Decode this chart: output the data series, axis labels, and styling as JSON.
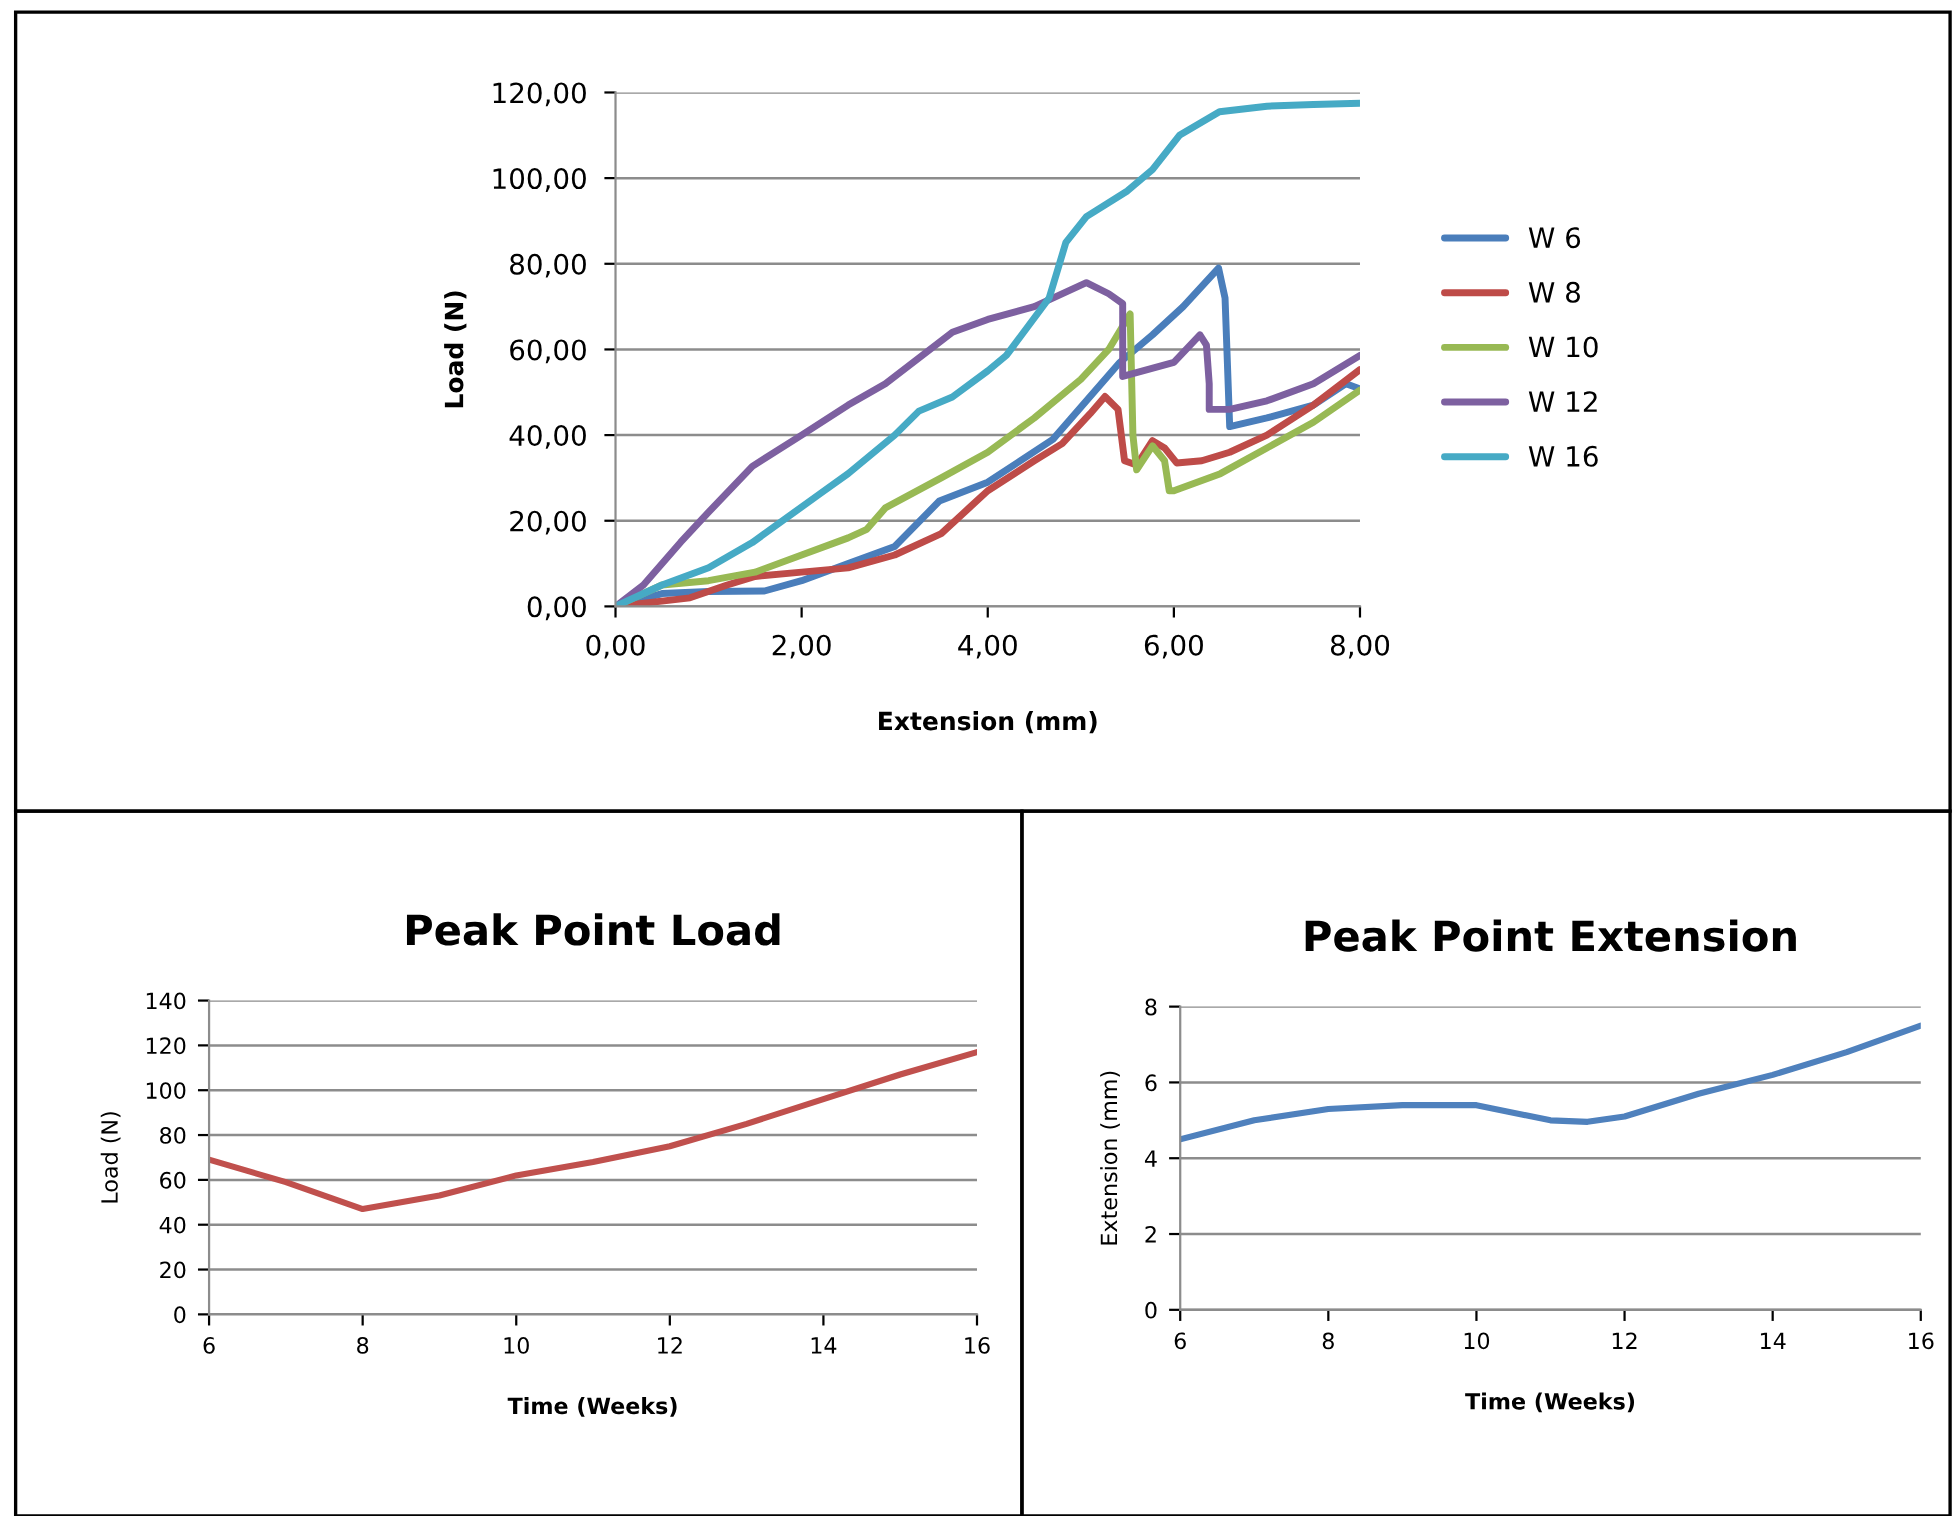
{
  "chart_data": [
    {
      "type": "line",
      "xlabel": "Extension (mm)",
      "ylabel": "Load (N)",
      "xlim": [
        0,
        8
      ],
      "ylim": [
        0,
        120
      ],
      "xticks": [
        {
          "value": 0,
          "label": "0,00"
        },
        {
          "value": 2,
          "label": "2,00"
        },
        {
          "value": 4,
          "label": "4,00"
        },
        {
          "value": 6,
          "label": "6,00"
        },
        {
          "value": 8,
          "label": "8,00"
        }
      ],
      "yticks": [
        {
          "value": 0,
          "label": "0,00"
        },
        {
          "value": 20,
          "label": "20,00"
        },
        {
          "value": 40,
          "label": "40,00"
        },
        {
          "value": 60,
          "label": "60,00"
        },
        {
          "value": 80,
          "label": "80,00"
        },
        {
          "value": 100,
          "label": "100,00"
        },
        {
          "value": 120,
          "label": "120,00"
        }
      ],
      "grid": "y",
      "legend": "right",
      "marker": "none",
      "line_style": "solid",
      "series": [
        {
          "name": "W 6",
          "color": "#4a7ebb",
          "x": [
            0,
            0.5,
            1,
            1.6,
            2,
            2.5,
            3,
            3.48,
            4,
            4.7,
            5.42,
            5.77,
            6.1,
            6.48,
            6.55,
            6.6,
            7,
            7.5,
            7.85,
            8
          ],
          "values": [
            0,
            3,
            3.5,
            3.6,
            6,
            10,
            14,
            24.6,
            29,
            39,
            57,
            63.4,
            70,
            79,
            72,
            42,
            44,
            47,
            52,
            50.8
          ]
        },
        {
          "name": "W 8",
          "color": "#be4b48",
          "x": [
            0,
            0.8,
            1.2,
            1.5,
            2,
            2.5,
            3,
            3.5,
            3.8,
            4,
            4.5,
            4.8,
            5.1,
            5.26,
            5.4,
            5.47,
            5.6,
            5.77,
            5.9,
            6.03,
            6.3,
            6.6,
            7,
            7.5,
            8
          ],
          "values": [
            0,
            2,
            5,
            7,
            8,
            9,
            12,
            17,
            23,
            27,
            34,
            38,
            45,
            49,
            46,
            34,
            33,
            38.7,
            37,
            33.5,
            34,
            36,
            40,
            47,
            55.3
          ]
        },
        {
          "name": "W 10",
          "color": "#98b954",
          "x": [
            0,
            0.5,
            1,
            1.5,
            2,
            2.5,
            2.7,
            2.9,
            3.5,
            4,
            4.5,
            5,
            5.3,
            5.53,
            5.56,
            5.6,
            5.77,
            5.9,
            5.95,
            6,
            6.5,
            7,
            7.5,
            8
          ],
          "values": [
            0,
            5,
            6,
            8,
            12,
            16,
            18,
            23,
            30,
            36,
            44,
            53,
            60,
            68.3,
            40,
            31.9,
            37.5,
            34,
            27,
            27,
            31,
            37,
            43,
            50.5
          ]
        },
        {
          "name": "W 12",
          "color": "#7d60a0",
          "x": [
            0,
            0.3,
            0.7,
            1,
            1.47,
            2,
            2.5,
            2.9,
            3.62,
            4,
            4.5,
            5.06,
            5.3,
            5.45,
            5.45,
            6,
            6.28,
            6.35,
            6.38,
            6.38,
            6.6,
            7,
            7.5,
            8
          ],
          "values": [
            0,
            5,
            15,
            22,
            32.7,
            40,
            47,
            52,
            64,
            67,
            70,
            75.6,
            73,
            70.7,
            53.7,
            57,
            63.4,
            61,
            52,
            46,
            46,
            48,
            52,
            58.6
          ]
        },
        {
          "name": "W 16",
          "color": "#46aac5",
          "x": [
            0,
            0.5,
            1,
            1.47,
            2.19,
            2.5,
            3,
            3.26,
            3.62,
            4,
            4.2,
            4.66,
            4.84,
            5.06,
            5.5,
            5.77,
            6.06,
            6.49,
            7,
            7.5,
            8
          ],
          "values": [
            0,
            5,
            9,
            14.9,
            26.2,
            31,
            40,
            45.6,
            48.9,
            55,
            58.6,
            72,
            85,
            91,
            97,
            102,
            110,
            115.5,
            116.8,
            117.2,
            117.5
          ]
        }
      ]
    },
    {
      "type": "line",
      "title": "Peak Point Load",
      "xlabel": "Time (Weeks)",
      "ylabel": "Load (N)",
      "xlim": [
        6,
        16
      ],
      "ylim": [
        0,
        140
      ],
      "xticks": [
        6,
        8,
        10,
        12,
        14,
        16
      ],
      "yticks": [
        0,
        20,
        40,
        60,
        80,
        100,
        120,
        140
      ],
      "grid": "y",
      "marker": "none",
      "line_style": "solid",
      "series": [
        {
          "color": "#c0504d",
          "x": [
            6,
            7,
            8,
            9,
            10,
            11,
            12,
            13,
            14,
            15,
            16
          ],
          "values": [
            69,
            59,
            47,
            53,
            62,
            68,
            75,
            85,
            96,
            107,
            117
          ]
        }
      ]
    },
    {
      "type": "line",
      "title": "Peak Point Extension",
      "xlabel": "Time (Weeks)",
      "ylabel": "Extension (mm)",
      "xlim": [
        6,
        16
      ],
      "ylim": [
        0,
        8
      ],
      "xticks": [
        6,
        8,
        10,
        12,
        14,
        16
      ],
      "yticks": [
        0,
        2,
        4,
        6,
        8
      ],
      "grid": "y",
      "marker": "none",
      "line_style": "solid",
      "series": [
        {
          "color": "#4f81bd",
          "x": [
            6,
            7,
            8,
            9,
            10,
            11,
            11.5,
            12,
            13,
            14,
            15,
            16
          ],
          "values": [
            4.5,
            5.0,
            5.3,
            5.4,
            5.4,
            5.0,
            4.96,
            5.1,
            5.7,
            6.2,
            6.8,
            7.5
          ]
        }
      ]
    }
  ]
}
